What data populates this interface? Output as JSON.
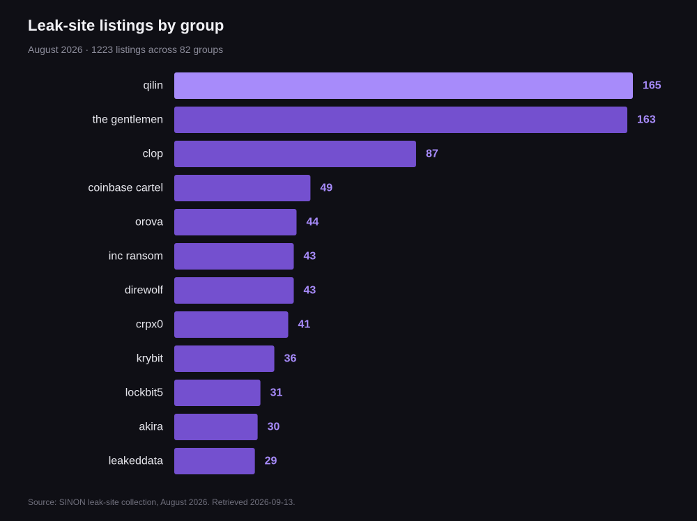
{
  "header": {
    "title": "Leak-site listings by group",
    "subtitle": "August 2026 · 1223 listings across 82 groups"
  },
  "footer": {
    "source": "Source: SINON leak-site collection, August 2026. Retrieved 2026-09-13."
  },
  "colors": {
    "bar": "#7450cf",
    "bar_highlight": "#a78bfa",
    "value_label": "#a78bfa",
    "category_label": "#e6e6ec"
  },
  "chart_data": {
    "type": "bar",
    "orientation": "horizontal",
    "categories": [
      "qilin",
      "the gentlemen",
      "clop",
      "coinbase cartel",
      "orova",
      "inc ransom",
      "direwolf",
      "crpx0",
      "krybit",
      "lockbit5",
      "akira",
      "leakeddata"
    ],
    "values": [
      165,
      163,
      87,
      49,
      44,
      43,
      43,
      41,
      36,
      31,
      30,
      29
    ],
    "highlight_index": 0,
    "xlim": [
      0,
      165
    ],
    "grid": false,
    "legend": "none"
  }
}
